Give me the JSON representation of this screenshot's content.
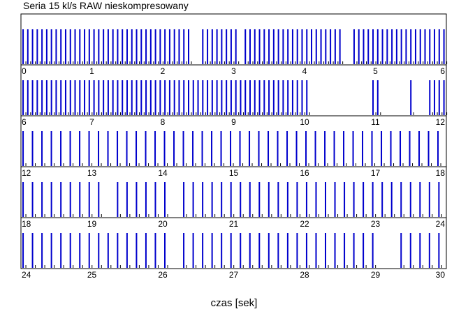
{
  "chart_data": {
    "type": "bar",
    "title": "Seria 15 kl/s RAW nieskompresowany",
    "xlabel": "czas [sek]",
    "ylabel": "",
    "unit": "sek",
    "series_color": "#0000cc",
    "minor_color": "#000000",
    "grid": false,
    "legend": "none",
    "rows": [
      {
        "xlim": [
          0,
          6
        ],
        "tick_labels": [
          "0",
          "1",
          "2",
          "3",
          "4",
          "5",
          "6"
        ],
        "bar_step": 0.0667,
        "gaps": [
          [
            2.4,
            2.55
          ],
          [
            3.05,
            3.12
          ],
          [
            4.55,
            4.65
          ]
        ]
      },
      {
        "xlim": [
          6,
          12
        ],
        "tick_labels": [
          "6",
          "7",
          "8",
          "9",
          "10",
          "11",
          "12"
        ],
        "bar_step": 0.0667,
        "gaps": [
          [
            10.05,
            10.95
          ],
          [
            11.05,
            11.45
          ],
          [
            11.55,
            11.75
          ]
        ]
      },
      {
        "xlim": [
          12,
          18
        ],
        "tick_labels": [
          "12",
          "13",
          "14",
          "15",
          "16",
          "17",
          "18"
        ],
        "bar_step": 0.133,
        "gaps": [
          [
            12.85,
            12.95
          ]
        ]
      },
      {
        "xlim": [
          18,
          24
        ],
        "tick_labels": [
          "18",
          "19",
          "20",
          "21",
          "22",
          "23",
          "24"
        ],
        "bar_step": 0.1333,
        "gaps": [
          [
            19.15,
            19.35
          ],
          [
            20.05,
            20.25
          ]
        ]
      },
      {
        "xlim": [
          24,
          30
        ],
        "tick_labels": [
          "24",
          "25",
          "26",
          "27",
          "28",
          "29",
          "30"
        ],
        "bar_step": 0.1333,
        "gaps": [
          [
            26.05,
            26.25
          ],
          [
            29.05,
            29.35
          ]
        ]
      }
    ]
  }
}
